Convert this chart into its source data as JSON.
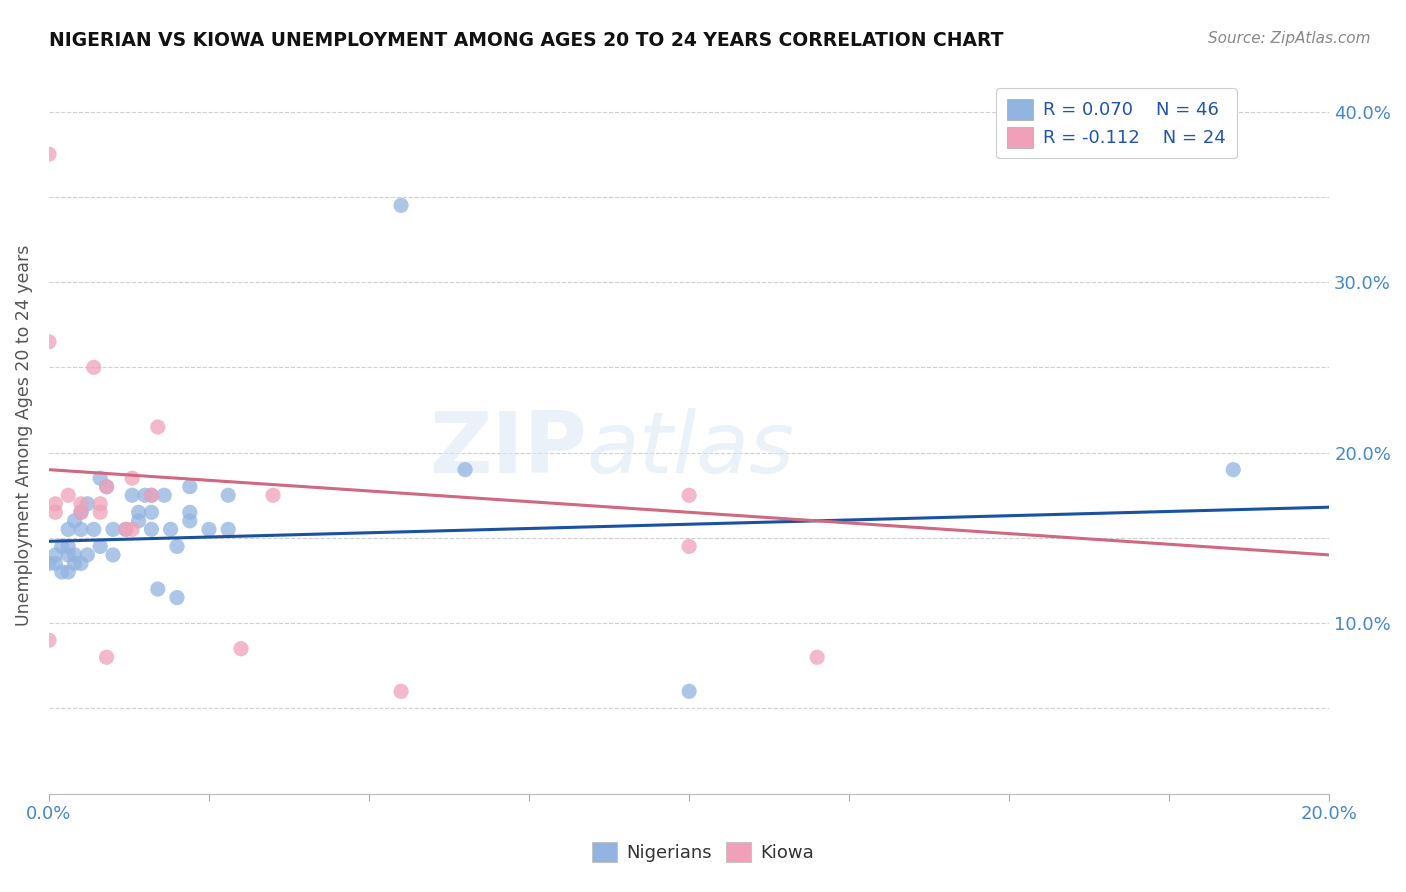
{
  "title": "NIGERIAN VS KIOWA UNEMPLOYMENT AMONG AGES 20 TO 24 YEARS CORRELATION CHART",
  "source": "Source: ZipAtlas.com",
  "ylabel": "Unemployment Among Ages 20 to 24 years",
  "xlim": [
    0.0,
    0.2
  ],
  "ylim": [
    0.0,
    0.42
  ],
  "xticks": [
    0.0,
    0.025,
    0.05,
    0.075,
    0.1,
    0.125,
    0.15,
    0.175,
    0.2
  ],
  "xtick_labels": [
    "0.0%",
    "",
    "",
    "",
    "",
    "",
    "",
    "",
    "20.0%"
  ],
  "yticks": [
    0.0,
    0.05,
    0.1,
    0.15,
    0.2,
    0.25,
    0.3,
    0.35,
    0.4
  ],
  "ytick_labels": [
    "",
    "",
    "10.0%",
    "",
    "20.0%",
    "",
    "30.0%",
    "",
    "40.0%"
  ],
  "nigerians_color": "#92b4e0",
  "kiowa_color": "#f0a0b8",
  "nigerian_line_color": "#1a52a0",
  "kiowa_line_color": "#d06880",
  "legend_r_nigerian": "R = 0.070",
  "legend_n_nigerian": "N = 46",
  "legend_r_kiowa": "R = -0.112",
  "legend_n_kiowa": "N = 24",
  "nigerians_x": [
    0.0,
    0.001,
    0.001,
    0.002,
    0.002,
    0.003,
    0.003,
    0.003,
    0.003,
    0.004,
    0.004,
    0.004,
    0.005,
    0.005,
    0.005,
    0.006,
    0.006,
    0.007,
    0.008,
    0.008,
    0.009,
    0.01,
    0.01,
    0.012,
    0.013,
    0.014,
    0.014,
    0.015,
    0.016,
    0.016,
    0.016,
    0.017,
    0.018,
    0.019,
    0.02,
    0.02,
    0.022,
    0.022,
    0.022,
    0.025,
    0.028,
    0.028,
    0.055,
    0.065,
    0.1,
    0.185
  ],
  "nigerians_y": [
    0.135,
    0.135,
    0.14,
    0.13,
    0.145,
    0.13,
    0.14,
    0.145,
    0.155,
    0.135,
    0.14,
    0.16,
    0.135,
    0.155,
    0.165,
    0.14,
    0.17,
    0.155,
    0.145,
    0.185,
    0.18,
    0.14,
    0.155,
    0.155,
    0.175,
    0.16,
    0.165,
    0.175,
    0.155,
    0.165,
    0.175,
    0.12,
    0.175,
    0.155,
    0.115,
    0.145,
    0.16,
    0.165,
    0.18,
    0.155,
    0.155,
    0.175,
    0.345,
    0.19,
    0.06,
    0.19
  ],
  "kiowa_x": [
    0.0,
    0.0,
    0.001,
    0.001,
    0.003,
    0.005,
    0.005,
    0.007,
    0.008,
    0.008,
    0.009,
    0.009,
    0.012,
    0.013,
    0.013,
    0.016,
    0.017,
    0.03,
    0.035,
    0.055,
    0.1,
    0.1,
    0.12,
    0.0
  ],
  "kiowa_y": [
    0.375,
    0.265,
    0.165,
    0.17,
    0.175,
    0.165,
    0.17,
    0.25,
    0.165,
    0.17,
    0.18,
    0.08,
    0.155,
    0.155,
    0.185,
    0.175,
    0.215,
    0.085,
    0.175,
    0.06,
    0.175,
    0.145,
    0.08,
    0.09
  ],
  "watermark_zip": "ZIP",
  "watermark_atlas": "atlas",
  "background_color": "#ffffff",
  "grid_color": "#d0d0d0",
  "nigerian_trend_x": [
    0.0,
    0.2
  ],
  "nigerian_trend_y": [
    0.148,
    0.168
  ],
  "kiowa_trend_x": [
    0.0,
    0.2
  ],
  "kiowa_trend_y": [
    0.19,
    0.14
  ]
}
